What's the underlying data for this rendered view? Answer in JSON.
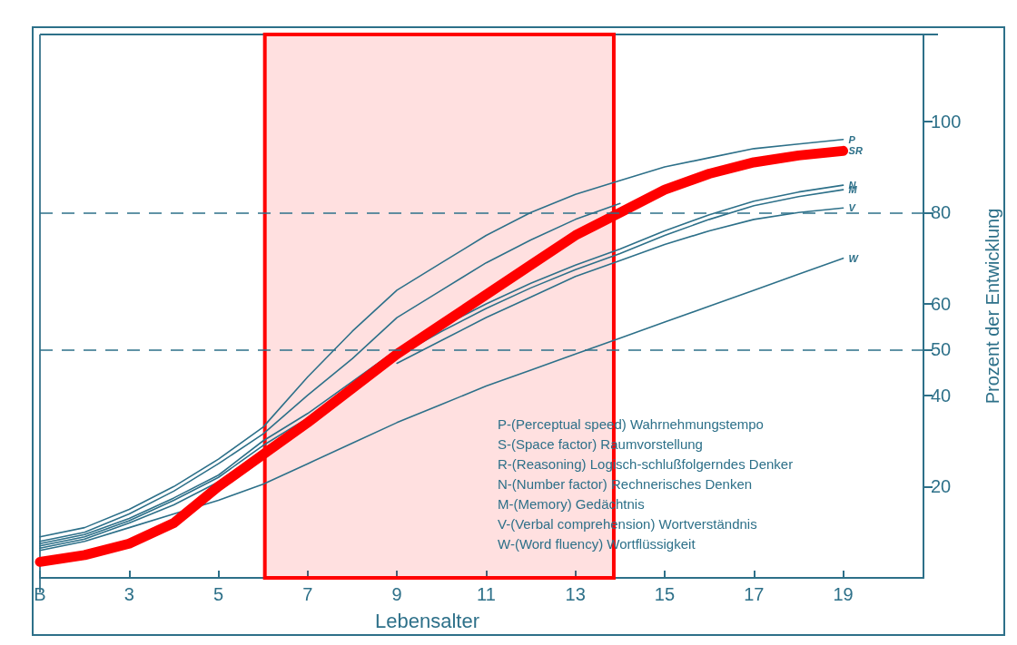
{
  "chart_data": {
    "type": "line",
    "xlabel": "Lebensalter",
    "ylabel": "Prozent der Entwicklung",
    "x": [
      1,
      2,
      3,
      4,
      5,
      6,
      7,
      8,
      9,
      10,
      11,
      12,
      13,
      14,
      15,
      16,
      17,
      18,
      19
    ],
    "xlim": [
      1,
      20.8
    ],
    "xticks": [
      {
        "value": 1,
        "label": "B"
      },
      3,
      5,
      7,
      9,
      11,
      13,
      15,
      17,
      19
    ],
    "ylim": [
      0,
      119
    ],
    "yticks": [
      20,
      40,
      50,
      60,
      80,
      100
    ],
    "grid": false,
    "legend": false,
    "marker": "none",
    "line_style": "solid",
    "series": [
      {
        "name": "P",
        "color": "#2d7089",
        "values": [
          9,
          11,
          15,
          20,
          26,
          33,
          44,
          54,
          63,
          69,
          75,
          80,
          84,
          87,
          90,
          92,
          94,
          95,
          96
        ]
      },
      {
        "color": "#2d7089",
        "values": [
          8,
          10,
          14,
          19,
          25,
          31.5,
          40,
          48,
          57,
          63,
          69,
          74,
          78.5,
          82,
          null,
          null,
          null,
          null,
          null
        ]
      },
      {
        "name": "N",
        "color": "#2d7089",
        "values": [
          7.5,
          9.5,
          13,
          17.5,
          22.5,
          30,
          36,
          43,
          50,
          55,
          60,
          64.5,
          68.5,
          72,
          76,
          79.5,
          82.5,
          84.5,
          86
        ]
      },
      {
        "name": "M",
        "color": "#2d7089",
        "values": [
          7,
          9,
          12.5,
          17,
          22,
          29,
          35,
          42,
          48.5,
          54,
          59,
          63.5,
          67.5,
          71,
          75,
          78.5,
          81.5,
          83.5,
          85
        ]
      },
      {
        "name": "V",
        "color": "#2d7089",
        "values": [
          6.5,
          8.5,
          12,
          16,
          21,
          28,
          null,
          null,
          47,
          52,
          57,
          61.5,
          66,
          69.5,
          73,
          76,
          78.5,
          80,
          81
        ]
      },
      {
        "name": "W",
        "color": "#2d7089",
        "values": [
          6,
          8,
          11,
          14,
          17,
          20.5,
          25,
          29.5,
          34,
          38,
          42,
          45.5,
          49,
          52.5,
          56,
          59.5,
          63,
          66.5,
          70
        ]
      },
      {
        "name": "SR",
        "color": "#ff0000",
        "values": [
          3.5,
          5,
          7.5,
          12,
          20,
          27,
          34,
          41.5,
          49,
          55.5,
          62,
          68.5,
          75,
          80,
          85,
          88.5,
          91,
          92.5,
          93.5
        ]
      }
    ],
    "ref_lines": [
      {
        "axis": "y",
        "value": 80,
        "color": "#2d7089",
        "line_style": "dashed"
      },
      {
        "axis": "y",
        "value": 50,
        "color": "#2d7089",
        "line_style": "dashed"
      }
    ],
    "bands": [
      {
        "axis": "x",
        "from": 6.04,
        "to": 13.86,
        "color": "#ff0000"
      }
    ],
    "annotations": [
      "P-(Perceptual speed) Wahrnehmungstempo",
      "S-(Space factor) Raumvorstellung",
      "R-(Reasoning) Logisch-schlußfolgerndes Denker",
      "N-(Number factor) Rechnerisches Denken",
      "M-(Memory) Gedächtnis",
      "V-(Verbal comprehension) Wortverständnis",
      "W-(Word fluency) Wortflüssigkeit"
    ]
  }
}
